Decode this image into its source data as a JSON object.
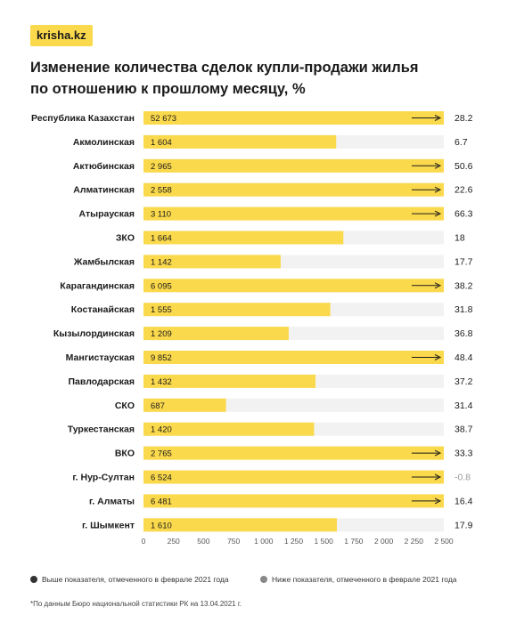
{
  "brand": {
    "logo_text": "krisha.kz"
  },
  "title_lines": [
    "Изменение количества сделок купли-продажи жилья",
    "по отношению к прошлому месяцу, %"
  ],
  "colors": {
    "bar": "#fbd94c",
    "track": "#f2f2f2",
    "arrow": "#1a1a1a",
    "up_dot": "#333333",
    "down_dot": "#888888",
    "negative_text": "#9a9a9a"
  },
  "legend": {
    "above": "Выше показателя, отмеченного в феврале 2021 года",
    "below": "Ниже показателя, отмеченного в феврале 2021 года"
  },
  "footnote": "*По данным Бюро национальной статистики РК на 13.04.2021 г.",
  "chart_data": {
    "type": "bar",
    "orientation": "horizontal",
    "xlim": [
      0,
      2500
    ],
    "xticks": [
      "0",
      "250",
      "500",
      "750",
      "1 000",
      "1 250",
      "1 500",
      "1 750",
      "2 000",
      "2 250",
      "2 500"
    ],
    "categories": [
      "Республика Казахстан",
      "Акмолинская",
      "Актюбинская",
      "Алматинская",
      "Атырауская",
      "ЗКО",
      "Жамбылская",
      "Карагандинская",
      "Костанайская",
      "Кызылординская",
      "Мангистауская",
      "Павлодарская",
      "СКО",
      "Туркестанская",
      "ВКО",
      "г. Нур-Султан",
      "г. Алматы",
      "г. Шымкент"
    ],
    "values": [
      52673,
      1604,
      2965,
      2558,
      3110,
      1664,
      1142,
      6095,
      1555,
      1209,
      9852,
      1432,
      687,
      1420,
      2765,
      6524,
      6481,
      1610
    ],
    "value_labels": [
      "52 673",
      "1 604",
      "2 965",
      "2 558",
      "3 110",
      "1 664",
      "1 142",
      "6 095",
      "1 555",
      "1 209",
      "9 852",
      "1 432",
      "687",
      "1 420",
      "2 765",
      "6 524",
      "6 481",
      "1 610"
    ],
    "change_labels": [
      "28.2",
      "6.7",
      "50.6",
      "22.6",
      "66.3",
      "18",
      "17.7",
      "38.2",
      "31.8",
      "36.8",
      "48.4",
      "37.2",
      "31.4",
      "38.7",
      "33.3",
      "-0.8",
      "16.4",
      "17.9"
    ],
    "change_values": [
      28.2,
      6.7,
      50.6,
      22.6,
      66.3,
      18,
      17.7,
      38.2,
      31.8,
      36.8,
      48.4,
      37.2,
      31.4,
      38.7,
      33.3,
      -0.8,
      16.4,
      17.9
    ]
  }
}
